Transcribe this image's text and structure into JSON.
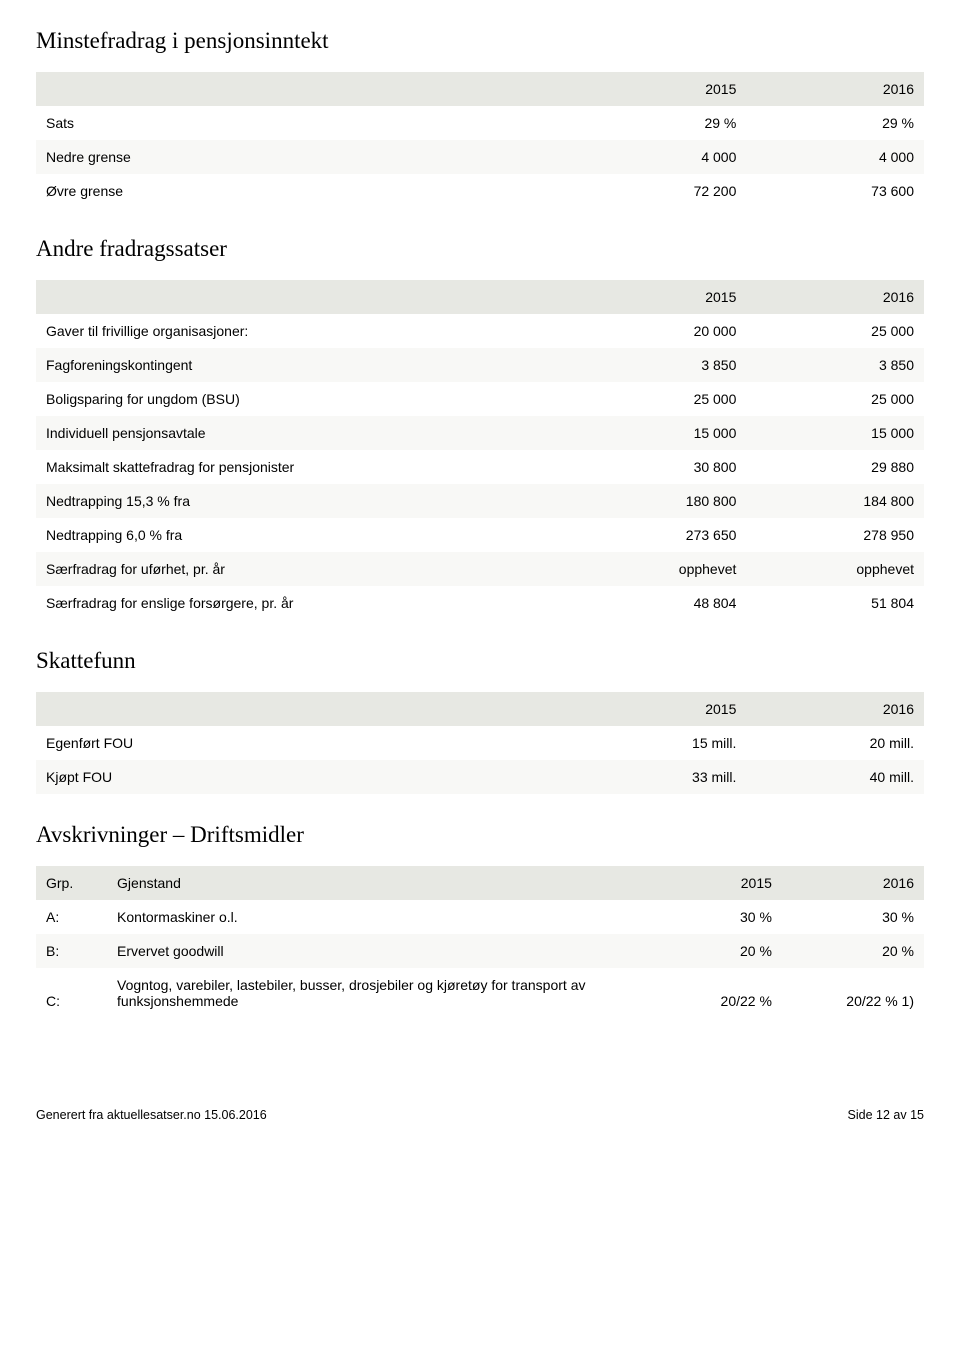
{
  "colors": {
    "header_bg": "#e7e8e3",
    "row_alt_bg": "#f8f8f6",
    "row_bg": "#ffffff",
    "text": "#000000"
  },
  "typography": {
    "heading_font": "Times New Roman",
    "heading_size_pt": 17,
    "body_font": "Arial",
    "body_size_pt": 10.5
  },
  "sections": {
    "minstefradrag": {
      "title": "Minstefradrag i pensjonsinntekt",
      "type": "table",
      "columns": [
        "",
        "2015",
        "2016"
      ],
      "rows": [
        [
          "Sats",
          "29 %",
          "29 %"
        ],
        [
          "Nedre grense",
          "4 000",
          "4 000"
        ],
        [
          "Øvre grense",
          "72 200",
          "73 600"
        ]
      ]
    },
    "andre": {
      "title": "Andre fradragssatser",
      "type": "table",
      "columns": [
        "",
        "2015",
        "2016"
      ],
      "rows": [
        [
          "Gaver til frivillige organisasjoner:",
          "20 000",
          "25 000"
        ],
        [
          "Fagforeningskontingent",
          "3 850",
          "3 850"
        ],
        [
          "Boligsparing for ungdom (BSU)",
          "25 000",
          "25 000"
        ],
        [
          "Individuell pensjonsavtale",
          "15 000",
          "15 000"
        ],
        [
          "Maksimalt skattefradrag for pensjonister",
          "30 800",
          "29 880"
        ],
        [
          "Nedtrapping 15,3 % fra",
          "180 800",
          "184 800"
        ],
        [
          "Nedtrapping 6,0 % fra",
          "273 650",
          "278 950"
        ],
        [
          "Særfradrag for uførhet, pr. år",
          "opphevet",
          "opphevet"
        ],
        [
          "Særfradrag for enslige forsørgere, pr. år",
          "48 804",
          "51 804"
        ]
      ]
    },
    "skattefunn": {
      "title": "Skattefunn",
      "type": "table",
      "columns": [
        "",
        "2015",
        "2016"
      ],
      "rows": [
        [
          "Egenført FOU",
          "15 mill.",
          "20 mill."
        ],
        [
          "Kjøpt FOU",
          "33 mill.",
          "40 mill."
        ]
      ]
    },
    "avskrivninger": {
      "title": "Avskrivninger – Driftsmidler",
      "type": "table",
      "columns": [
        "Grp.",
        "Gjenstand",
        "2015",
        "2016"
      ],
      "rows": [
        [
          "A:",
          "Kontormaskiner o.l.",
          "30 %",
          "30 %"
        ],
        [
          "B:",
          "Ervervet goodwill",
          "20 %",
          "20 %"
        ],
        [
          "C:",
          "Vogntog, varebiler, lastebiler, busser, drosjebiler og kjøretøy for transport av funksjonshemmede",
          "20/22 %",
          "20/22 % 1)"
        ]
      ]
    }
  },
  "footer": {
    "left": "Generert fra aktuellesatser.no 15.06.2016",
    "right": "Side 12 av 15"
  }
}
